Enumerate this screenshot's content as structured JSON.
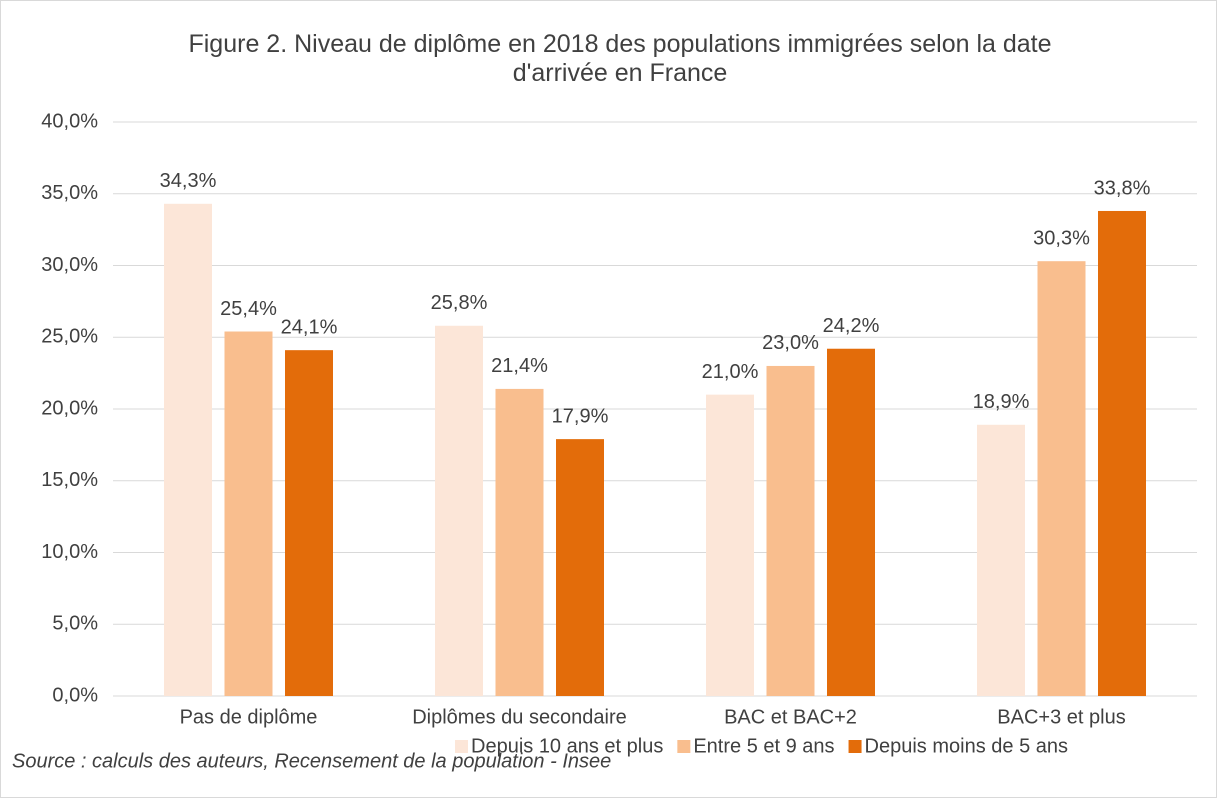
{
  "chart_data": {
    "type": "bar",
    "title": "Figure 2. Niveau de diplôme en 2018 des populations immigrées selon la date d'arrivée en France",
    "source": "Source : calculs des auteurs, Recensement de la population - Insee",
    "categories": [
      "Pas de diplôme",
      "Diplômes du secondaire",
      "BAC et BAC+2",
      "BAC+3 et plus"
    ],
    "series": [
      {
        "name": "Depuis 10 ans et plus",
        "color": "#fce6d8",
        "values": [
          34.3,
          25.8,
          21.0,
          18.9
        ],
        "value_labels": [
          "34,3%",
          "25,8%",
          "21,0%",
          "18,9%"
        ]
      },
      {
        "name": "Entre 5 et 9 ans",
        "color": "#f9be8e",
        "values": [
          25.4,
          21.4,
          23.0,
          30.3
        ],
        "value_labels": [
          "25,4%",
          "21,4%",
          "23,0%",
          "30,3%"
        ]
      },
      {
        "name": "Depuis moins de 5 ans",
        "color": "#e36c0a",
        "values": [
          24.1,
          17.9,
          24.2,
          33.8
        ],
        "value_labels": [
          "24,1%",
          "17,9%",
          "24,2%",
          "33,8%"
        ]
      }
    ],
    "ylim": [
      0,
      40
    ],
    "yticks": [
      {
        "value": 0,
        "label": "0,0%"
      },
      {
        "value": 5,
        "label": "5,0%"
      },
      {
        "value": 10,
        "label": "10,0%"
      },
      {
        "value": 15,
        "label": "15,0%"
      },
      {
        "value": 20,
        "label": "20,0%"
      },
      {
        "value": 25,
        "label": "25,0%"
      },
      {
        "value": 30,
        "label": "30,0%"
      },
      {
        "value": 35,
        "label": "35,0%"
      },
      {
        "value": 40,
        "label": "40,0%"
      }
    ],
    "grid": true,
    "legend": "bottom"
  }
}
